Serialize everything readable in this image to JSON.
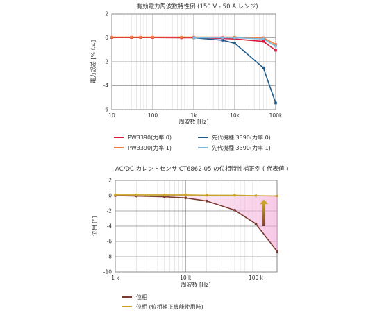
{
  "chart_data": [
    {
      "type": "line",
      "title": "有効電力周波数特性例 (150 V - 50 A レンジ)",
      "xlabel": "周波数 [Hz]",
      "ylabel": "電力誤差 [% f.s.]",
      "xscale": "log",
      "xlim": [
        10,
        100000
      ],
      "ylim": [
        -6,
        2
      ],
      "grid": true,
      "xticks": [
        10,
        100,
        1000,
        10000,
        100000
      ],
      "xtick_labels": [
        "10",
        "100",
        "1k",
        "10k",
        "100k"
      ],
      "yticks": [
        2,
        0,
        -2,
        -4,
        -6
      ],
      "ytick_labels": [
        "2",
        "0",
        "-2",
        "-4",
        "-6"
      ],
      "legend_position": "bottom",
      "series": [
        {
          "name": "PW3390(力率 0)",
          "color": "#d9173b",
          "marker": "square",
          "x": [
            10,
            30,
            50,
            100,
            500,
            1000,
            5000,
            10000,
            50000,
            100000
          ],
          "y": [
            0.02,
            0.02,
            0.02,
            0.02,
            0.0,
            0.0,
            -0.05,
            -0.1,
            -0.3,
            -1.05
          ]
        },
        {
          "name": "PW3390(力率 1)",
          "color": "#f07c3a",
          "marker": "square",
          "x": [
            10,
            30,
            50,
            100,
            500,
            1000,
            5000,
            10000,
            50000,
            100000
          ],
          "y": [
            0.05,
            0.05,
            0.05,
            0.05,
            0.05,
            0.05,
            0.05,
            0.05,
            0.0,
            -0.55
          ]
        },
        {
          "name": "先代機種 3390(力率 0)",
          "color": "#1d5a8a",
          "marker": "square",
          "x": [
            1000,
            5000,
            10000,
            50000,
            100000
          ],
          "y": [
            0.0,
            -0.2,
            -0.45,
            -2.5,
            -5.45
          ]
        },
        {
          "name": "先代機種 3390(力率 1)",
          "color": "#7fb8da",
          "marker": "square",
          "x": [
            1000,
            5000,
            10000,
            50000,
            100000
          ],
          "y": [
            0.0,
            0.0,
            0.0,
            -0.1,
            -0.7
          ]
        }
      ]
    },
    {
      "type": "line",
      "title": "AC/DC カレントセンサ CT6862-05 の位相特性補正例 ( 代表値 )",
      "xlabel": "周波数 [Hz]",
      "ylabel": "位相 [°]",
      "xscale": "log",
      "xlim": [
        1000,
        200000
      ],
      "ylim": [
        -10,
        2
      ],
      "grid": true,
      "xticks": [
        1000,
        10000,
        100000
      ],
      "xtick_labels": [
        "1 k",
        "10 k",
        "100 k"
      ],
      "yticks": [
        2,
        0,
        -2,
        -4,
        -6,
        -8,
        -10
      ],
      "ytick_labels": [
        "2",
        "0",
        "-2",
        "-4",
        "-6",
        "-8",
        "-10"
      ],
      "legend_position": "bottom",
      "series": [
        {
          "name": "位相",
          "color": "#7a3b33",
          "marker": "circle",
          "x": [
            1000,
            2000,
            5000,
            10000,
            20000,
            50000,
            100000,
            200000
          ],
          "y": [
            0.0,
            -0.05,
            -0.15,
            -0.3,
            -0.7,
            -1.9,
            -3.7,
            -7.3
          ]
        },
        {
          "name": "位相 (位相補正機能使用時)",
          "color": "#c9a227",
          "marker": "circle",
          "x": [
            1000,
            2000,
            5000,
            10000,
            20000,
            50000,
            100000,
            200000
          ],
          "y": [
            0.1,
            0.1,
            0.1,
            0.1,
            0.05,
            0.05,
            0.0,
            -0.05
          ]
        }
      ]
    }
  ]
}
